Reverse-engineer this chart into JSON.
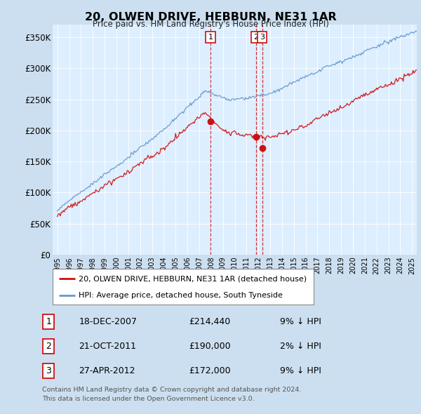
{
  "title": "20, OLWEN DRIVE, HEBBURN, NE31 1AR",
  "subtitle": "Price paid vs. HM Land Registry's House Price Index (HPI)",
  "ylabel_ticks": [
    "£0",
    "£50K",
    "£100K",
    "£150K",
    "£200K",
    "£250K",
    "£300K",
    "£350K"
  ],
  "ylim": [
    0,
    370000
  ],
  "ytick_vals": [
    0,
    50000,
    100000,
    150000,
    200000,
    250000,
    300000,
    350000
  ],
  "bg_color": "#ccdff0",
  "plot_bg": "#ddeeff",
  "hpi_color": "#6699cc",
  "price_color": "#cc1111",
  "vline_color": "#cc1111",
  "transactions": [
    {
      "label": "1",
      "date": "18-DEC-2007",
      "price": 214440,
      "hpi_pct": "9% ↓ HPI",
      "year": 2007.96
    },
    {
      "label": "2",
      "date": "21-OCT-2011",
      "price": 190000,
      "hpi_pct": "2% ↓ HPI",
      "year": 2011.8
    },
    {
      "label": "3",
      "date": "27-APR-2012",
      "price": 172000,
      "hpi_pct": "9% ↓ HPI",
      "year": 2012.32
    }
  ],
  "legend_line1": "20, OLWEN DRIVE, HEBBURN, NE31 1AR (detached house)",
  "legend_line2": "HPI: Average price, detached house, South Tyneside",
  "footer1": "Contains HM Land Registry data © Crown copyright and database right 2024.",
  "footer2": "This data is licensed under the Open Government Licence v3.0."
}
